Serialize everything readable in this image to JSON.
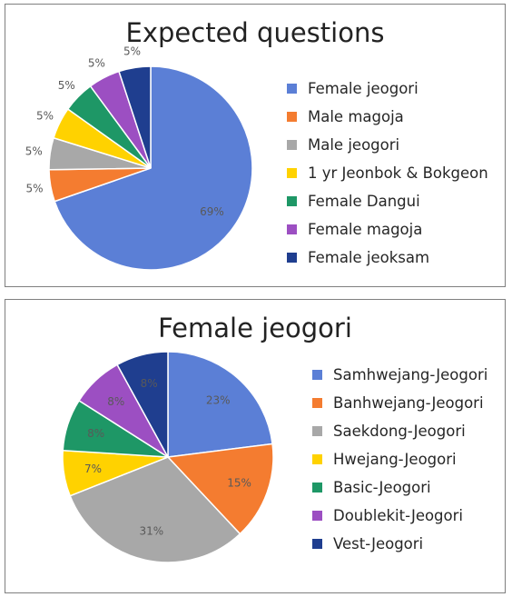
{
  "chart_data": [
    {
      "type": "pie",
      "title": "Expected questions",
      "legend_position": "right",
      "slices": [
        {
          "label": "Female jeogori",
          "value": 69,
          "value_label": "69%",
          "color": "#5b7fd6"
        },
        {
          "label": "Male magoja",
          "value": 5,
          "value_label": "5%",
          "color": "#f47c30"
        },
        {
          "label": "Male jeogori",
          "value": 5,
          "value_label": "5%",
          "color": "#a8a8a8"
        },
        {
          "label": "1 yr Jeonbok & Bokgeon",
          "value": 5,
          "value_label": "5%",
          "color": "#ffd200"
        },
        {
          "label": "Female Dangui",
          "value": 5,
          "value_label": "5%",
          "color": "#1e9766"
        },
        {
          "label": "Female magoja",
          "value": 5,
          "value_label": "5%",
          "color": "#9c4fc2"
        },
        {
          "label": "Female jeoksam",
          "value": 5,
          "value_label": "5%",
          "color": "#1f3e8f"
        }
      ]
    },
    {
      "type": "pie",
      "title": "Female jeogori",
      "legend_position": "right",
      "slices": [
        {
          "label": "Samhwejang-Jeogori",
          "value": 23,
          "value_label": "23%",
          "color": "#5b7fd6"
        },
        {
          "label": "Banhwejang-Jeogori",
          "value": 15,
          "value_label": "15%",
          "color": "#f47c30"
        },
        {
          "label": "Saekdong-Jeogori",
          "value": 31,
          "value_label": "31%",
          "color": "#a8a8a8"
        },
        {
          "label": "Hwejang-Jeogori",
          "value": 7,
          "value_label": "7%",
          "color": "#ffd200"
        },
        {
          "label": "Basic-Jeogori",
          "value": 8,
          "value_label": "8%",
          "color": "#1e9766"
        },
        {
          "label": "Doublekit-Jeogori",
          "value": 8,
          "value_label": "8%",
          "color": "#9c4fc2"
        },
        {
          "label": "Vest-Jeogori",
          "value": 8,
          "value_label": "8%",
          "color": "#1f3e8f"
        }
      ]
    }
  ]
}
